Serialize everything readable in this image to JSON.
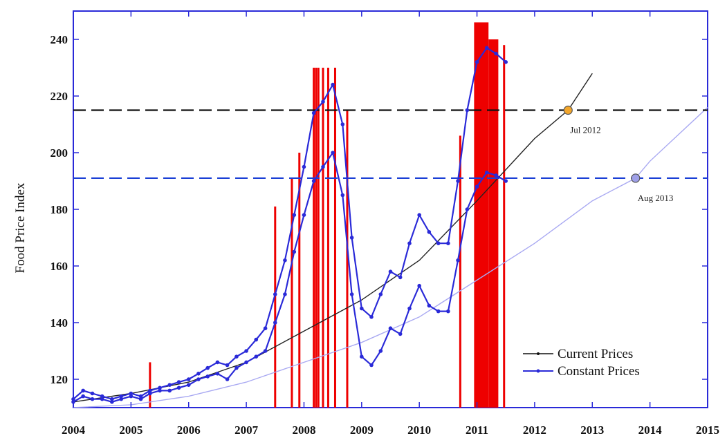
{
  "chart_data": {
    "type": "line",
    "title": "",
    "xlabel": "",
    "ylabel": "Food Price Index",
    "xlim": [
      2004,
      2015
    ],
    "ylim": [
      110,
      250
    ],
    "x_ticks": [
      "2004",
      "2005",
      "2006",
      "2007",
      "2008",
      "2009",
      "2010",
      "2011",
      "2012",
      "2013",
      "2014",
      "2015"
    ],
    "y_ticks": [
      "120",
      "140",
      "160",
      "180",
      "200",
      "220",
      "240"
    ],
    "grid": false,
    "legend_position": "bottom-right",
    "series": [
      {
        "name": "Current Prices",
        "color": "#2a2ad8",
        "points": [
          [
            2004.0,
            113
          ],
          [
            2004.17,
            116
          ],
          [
            2004.33,
            115
          ],
          [
            2004.5,
            114
          ],
          [
            2004.67,
            113
          ],
          [
            2004.83,
            114
          ],
          [
            2005.0,
            115
          ],
          [
            2005.17,
            114
          ],
          [
            2005.33,
            116
          ],
          [
            2005.5,
            117
          ],
          [
            2005.67,
            118
          ],
          [
            2005.83,
            119
          ],
          [
            2006.0,
            120
          ],
          [
            2006.17,
            122
          ],
          [
            2006.33,
            124
          ],
          [
            2006.5,
            126
          ],
          [
            2006.67,
            125
          ],
          [
            2006.83,
            128
          ],
          [
            2007.0,
            130
          ],
          [
            2007.17,
            134
          ],
          [
            2007.33,
            138
          ],
          [
            2007.5,
            150
          ],
          [
            2007.67,
            162
          ],
          [
            2007.83,
            178
          ],
          [
            2008.0,
            195
          ],
          [
            2008.17,
            214
          ],
          [
            2008.33,
            218
          ],
          [
            2008.5,
            224
          ],
          [
            2008.67,
            210
          ],
          [
            2008.83,
            170
          ],
          [
            2009.0,
            145
          ],
          [
            2009.17,
            142
          ],
          [
            2009.33,
            150
          ],
          [
            2009.5,
            158
          ],
          [
            2009.67,
            156
          ],
          [
            2009.83,
            168
          ],
          [
            2010.0,
            178
          ],
          [
            2010.17,
            172
          ],
          [
            2010.33,
            168
          ],
          [
            2010.5,
            168
          ],
          [
            2010.67,
            190
          ],
          [
            2010.83,
            215
          ],
          [
            2011.0,
            232
          ],
          [
            2011.17,
            237
          ],
          [
            2011.33,
            235
          ],
          [
            2011.5,
            232
          ]
        ]
      },
      {
        "name": "Constant Prices",
        "color": "#2a2ad8",
        "points": [
          [
            2004.0,
            112
          ],
          [
            2004.17,
            114
          ],
          [
            2004.33,
            113
          ],
          [
            2004.5,
            113
          ],
          [
            2004.67,
            112
          ],
          [
            2004.83,
            113
          ],
          [
            2005.0,
            114
          ],
          [
            2005.17,
            113
          ],
          [
            2005.33,
            115
          ],
          [
            2005.5,
            116
          ],
          [
            2005.67,
            116
          ],
          [
            2005.83,
            117
          ],
          [
            2006.0,
            118
          ],
          [
            2006.17,
            120
          ],
          [
            2006.33,
            121
          ],
          [
            2006.5,
            122
          ],
          [
            2006.67,
            120
          ],
          [
            2006.83,
            124
          ],
          [
            2007.0,
            126
          ],
          [
            2007.17,
            128
          ],
          [
            2007.33,
            130
          ],
          [
            2007.5,
            140
          ],
          [
            2007.67,
            150
          ],
          [
            2007.83,
            165
          ],
          [
            2008.0,
            178
          ],
          [
            2008.17,
            190
          ],
          [
            2008.33,
            195
          ],
          [
            2008.5,
            200
          ],
          [
            2008.67,
            185
          ],
          [
            2008.83,
            150
          ],
          [
            2009.0,
            128
          ],
          [
            2009.17,
            125
          ],
          [
            2009.33,
            130
          ],
          [
            2009.5,
            138
          ],
          [
            2009.67,
            136
          ],
          [
            2009.83,
            145
          ],
          [
            2010.0,
            153
          ],
          [
            2010.17,
            146
          ],
          [
            2010.33,
            144
          ],
          [
            2010.5,
            144
          ],
          [
            2010.67,
            162
          ],
          [
            2010.83,
            180
          ],
          [
            2011.0,
            188
          ],
          [
            2011.17,
            193
          ],
          [
            2011.33,
            192
          ],
          [
            2011.5,
            190
          ]
        ]
      }
    ],
    "trend_lines": [
      {
        "series": "Current Prices",
        "color": "#222222",
        "points": [
          [
            2004,
            112
          ],
          [
            2005,
            115
          ],
          [
            2006,
            119
          ],
          [
            2007,
            126
          ],
          [
            2008,
            137
          ],
          [
            2009,
            148
          ],
          [
            2010,
            162
          ],
          [
            2011,
            183
          ],
          [
            2012,
            205
          ],
          [
            2012.58,
            215
          ],
          [
            2013,
            228
          ]
        ]
      },
      {
        "series": "Constant Prices",
        "color": "#a9a9f2",
        "points": [
          [
            2004,
            110
          ],
          [
            2005,
            111
          ],
          [
            2006,
            114
          ],
          [
            2007,
            119
          ],
          [
            2008,
            126
          ],
          [
            2009,
            133
          ],
          [
            2010,
            142
          ],
          [
            2011,
            155
          ],
          [
            2012,
            168
          ],
          [
            2013,
            183
          ],
          [
            2013.75,
            191
          ],
          [
            2014,
            197
          ],
          [
            2015,
            216
          ]
        ]
      }
    ],
    "thresholds": [
      {
        "y": 215,
        "color": "#111111"
      },
      {
        "y": 191,
        "color": "#1a3fd6"
      }
    ],
    "markers": [
      {
        "x": 2012.58,
        "y": 215,
        "label": "Jul 2012",
        "color": "#f3a62b"
      },
      {
        "x": 2013.75,
        "y": 191,
        "label": "Aug 2013",
        "color": "#9fa0e8"
      }
    ],
    "red_bars": {
      "color": "#ee0000",
      "events": [
        {
          "x": 2005.33,
          "top": 126
        },
        {
          "x": 2007.5,
          "top": 181
        },
        {
          "x": 2007.79,
          "top": 191
        },
        {
          "x": 2007.92,
          "top": 200
        },
        {
          "x": 2008.17,
          "top": 230
        },
        {
          "x": 2008.21,
          "top": 230
        },
        {
          "x": 2008.25,
          "top": 230
        },
        {
          "x": 2008.33,
          "top": 230
        },
        {
          "x": 2008.42,
          "top": 230
        },
        {
          "x": 2008.54,
          "top": 230
        },
        {
          "x": 2008.75,
          "top": 215
        },
        {
          "x": 2010.71,
          "top": 206
        },
        {
          "x": 2011.47,
          "top": 238
        }
      ],
      "spans": [
        {
          "x0": 2010.95,
          "x1": 2011.2,
          "top": 246
        },
        {
          "x0": 2011.2,
          "x1": 2011.37,
          "top": 240
        }
      ]
    }
  }
}
